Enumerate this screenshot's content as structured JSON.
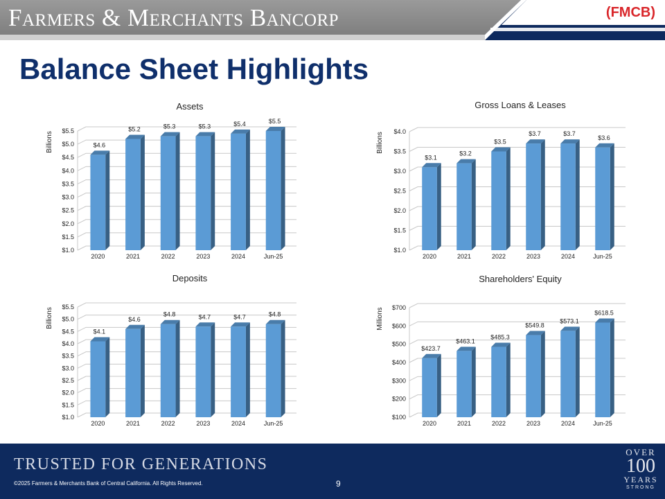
{
  "header": {
    "bank_name": "Farmers & Merchants Bancorp",
    "ticker": "(FMCB)",
    "colors": {
      "gray_band": "#8a8a8a",
      "navy_band": "#0e2a5e",
      "ticker": "#d9262a"
    }
  },
  "title": "Balance Sheet Highlights",
  "chart_data": [
    {
      "type": "bar",
      "title": "Assets",
      "ylabel": "Billions",
      "categories": [
        "2020",
        "2021",
        "2022",
        "2023",
        "2024",
        "Jun-25"
      ],
      "values": [
        4.6,
        5.2,
        5.3,
        5.3,
        5.4,
        5.5
      ],
      "data_labels": [
        "$4.6",
        "$5.2",
        "$5.3",
        "$5.3",
        "$5.4",
        "$5.5"
      ],
      "ylim": [
        1.0,
        5.5
      ],
      "yticks": [
        1.0,
        1.5,
        2.0,
        2.5,
        3.0,
        3.5,
        4.0,
        4.5,
        5.0,
        5.5
      ],
      "ytick_labels": [
        "$1.0",
        "$1.5",
        "$2.0",
        "$2.5",
        "$3.0",
        "$3.5",
        "$4.0",
        "$4.5",
        "$5.0",
        "$5.5"
      ],
      "grid": true,
      "bar_color": "#5b9bd5"
    },
    {
      "type": "bar",
      "title": "Gross Loans & Leases",
      "ylabel": "Billions",
      "categories": [
        "2020",
        "2021",
        "2022",
        "2023",
        "2024",
        "Jun-25"
      ],
      "values": [
        3.1,
        3.2,
        3.5,
        3.7,
        3.7,
        3.6
      ],
      "data_labels": [
        "$3.1",
        "$3.2",
        "$3.5",
        "$3.7",
        "$3.7",
        "$3.6"
      ],
      "ylim": [
        1.0,
        4.0
      ],
      "yticks": [
        1.0,
        1.5,
        2.0,
        2.5,
        3.0,
        3.5,
        4.0
      ],
      "ytick_labels": [
        "$1.0",
        "$1.5",
        "$2.0",
        "$2.5",
        "$3.0",
        "$3.5",
        "$4.0"
      ],
      "grid": true,
      "bar_color": "#5b9bd5"
    },
    {
      "type": "bar",
      "title": "Deposits",
      "ylabel": "Billions",
      "categories": [
        "2020",
        "2021",
        "2022",
        "2023",
        "2024",
        "Jun-25"
      ],
      "values": [
        4.1,
        4.6,
        4.8,
        4.7,
        4.7,
        4.8
      ],
      "data_labels": [
        "$4.1",
        "$4.6",
        "$4.8",
        "$4.7",
        "$4.7",
        "$4.8"
      ],
      "ylim": [
        1.0,
        5.5
      ],
      "yticks": [
        1.0,
        1.5,
        2.0,
        2.5,
        3.0,
        3.5,
        4.0,
        4.5,
        5.0,
        5.5
      ],
      "ytick_labels": [
        "$1.0",
        "$1.5",
        "$2.0",
        "$2.5",
        "$3.0",
        "$3.5",
        "$4.0",
        "$4.5",
        "$5.0",
        "$5.5"
      ],
      "grid": true,
      "bar_color": "#5b9bd5"
    },
    {
      "type": "bar",
      "title": "Shareholders' Equity",
      "ylabel": "Millions",
      "categories": [
        "2020",
        "2021",
        "2022",
        "2023",
        "2024",
        "Jun-25"
      ],
      "values": [
        423.7,
        463.1,
        485.3,
        549.8,
        573.1,
        618.5
      ],
      "data_labels": [
        "$423.7",
        "$463.1",
        "$485.3",
        "$549.8",
        "$573.1",
        "$618.5"
      ],
      "ylim": [
        100,
        700
      ],
      "yticks": [
        100,
        200,
        300,
        400,
        500,
        600,
        700
      ],
      "ytick_labels": [
        "$100",
        "$200",
        "$300",
        "$400",
        "$500",
        "$600",
        "$700"
      ],
      "grid": true,
      "bar_color": "#5b9bd5"
    }
  ],
  "footer": {
    "tagline": "TRUSTED FOR GENERATIONS",
    "copyright": "©2025 Farmers & Merchants Bank of Central California. All Rights Reserved.",
    "page_number": "9",
    "logo": {
      "over": "OVER",
      "number": "100",
      "years": "YEARS",
      "strong": "STRONG"
    }
  }
}
